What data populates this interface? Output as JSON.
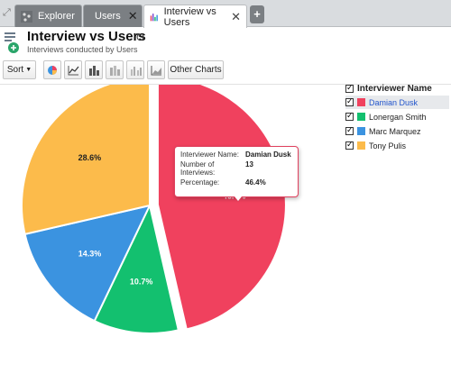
{
  "tabs": [
    {
      "label": "Explorer",
      "icon": "explorer-icon"
    },
    {
      "label": "Users",
      "icon": "table-icon"
    },
    {
      "label": "Interview vs Users",
      "icon": "chart-icon"
    }
  ],
  "header": {
    "title": "Interview vs Users",
    "subtitle": "Interviews conducted by Users"
  },
  "toolbar": {
    "sort_label": "Sort",
    "other_charts_label": "Other Charts"
  },
  "tooltip": {
    "name_key": "Interviewer Name:",
    "name_value": "Damian Dusk",
    "count_key": "Number of Interviews:",
    "count_value": "13",
    "pct_key": "Percentage:",
    "pct_value": "46.4%"
  },
  "legend": {
    "title": "Interviewer Name",
    "items": [
      {
        "label": "Damian Dusk",
        "color": "#f0415e"
      },
      {
        "label": "Lonergan Smith",
        "color": "#13c06f"
      },
      {
        "label": "Marc Marquez",
        "color": "#3b93e0"
      },
      {
        "label": "Tony Pulis",
        "color": "#fcbb4b"
      }
    ]
  },
  "chart_data": {
    "type": "pie",
    "categories": [
      "Damian Dusk",
      "Lonergan Smith",
      "Marc Marquez",
      "Tony Pulis"
    ],
    "values": [
      46.4,
      10.7,
      14.3,
      28.6
    ],
    "labels": [
      "46.4%",
      "10.7%",
      "14.3%",
      "28.6%"
    ],
    "colors": [
      "#f0415e",
      "#13c06f",
      "#3b93e0",
      "#fcbb4b"
    ],
    "exploded": "Damian Dusk",
    "title": "Interview vs Users",
    "legend_position": "top-right"
  }
}
